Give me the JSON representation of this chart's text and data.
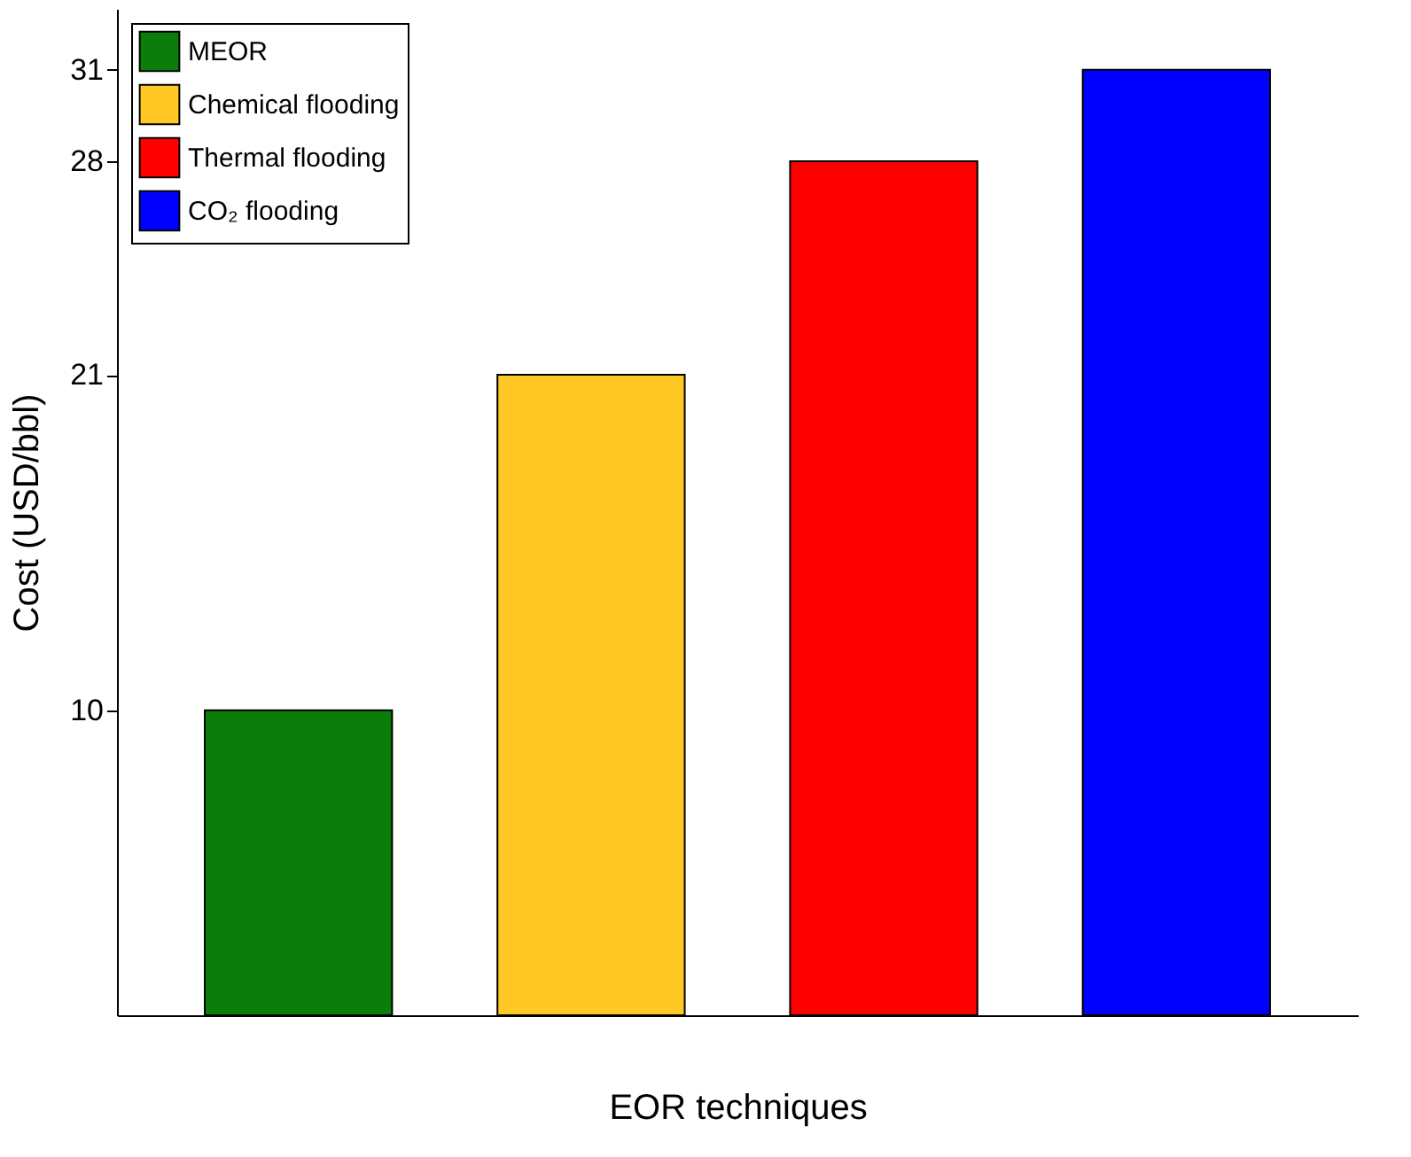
{
  "chart_data": {
    "type": "bar",
    "stacked": true,
    "xlabel": "EOR techniques",
    "ylabel": "Cost (USD/bbl)",
    "categories": [
      null,
      null,
      null,
      null
    ],
    "series": [
      {
        "name": "MEOR",
        "color": "#0a7d0a",
        "values": [
          10,
          null,
          null,
          null
        ]
      },
      {
        "name": "Chemical flooding",
        "color": "#ffc824",
        "values": [
          null,
          21,
          null,
          null
        ]
      },
      {
        "name": "Thermal flooding",
        "color": "#ff0000",
        "values": [
          null,
          null,
          28,
          null
        ]
      },
      {
        "name": "CO₂ flooding",
        "color": "#0000ff",
        "values": [
          null,
          null,
          null,
          31
        ]
      }
    ],
    "ylim": [
      0,
      33
    ],
    "yticks": [
      10,
      21,
      28,
      31
    ],
    "legend": "top left",
    "grid": false
  }
}
